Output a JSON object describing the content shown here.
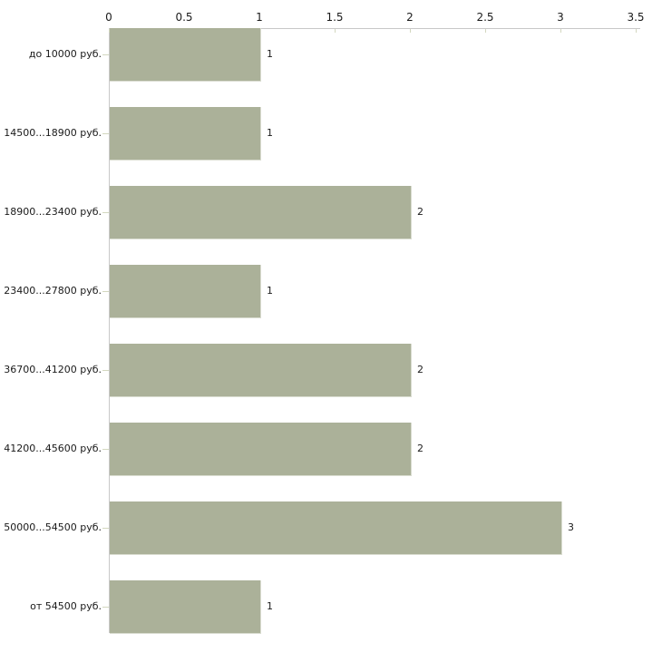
{
  "chart_data": {
    "type": "bar",
    "orientation": "horizontal",
    "categories": [
      "до 10000 руб.",
      "14500...18900 руб.",
      "18900...23400 руб.",
      "23400...27800 руб.",
      "36700...41200 руб.",
      "41200...45600 руб.",
      "50000...54500 руб.",
      "от 54500 руб."
    ],
    "values": [
      1,
      1,
      2,
      1,
      2,
      2,
      3,
      1
    ],
    "value_labels": [
      "1",
      "1",
      "2",
      "1",
      "2",
      "2",
      "3",
      "1"
    ],
    "title": "",
    "xlabel": "",
    "ylabel": "",
    "xlim": [
      0,
      3.5
    ],
    "xticks": [
      0,
      0.5,
      1,
      1.5,
      2,
      2.5,
      3,
      3.5
    ],
    "xtick_labels": [
      "0",
      "0.5",
      "1",
      "1.5",
      "2",
      "2.5",
      "3",
      "3.5"
    ],
    "grid": "off",
    "legend": "none",
    "axis_position": "top",
    "colors": {
      "bar_fill": "#abb199",
      "bar_edge": "#d9dcd0",
      "axis_line": "#c8c8c8",
      "tick_mark": "#d3d7bf",
      "text": "#1a1a1a",
      "background": "#ffffff"
    }
  }
}
